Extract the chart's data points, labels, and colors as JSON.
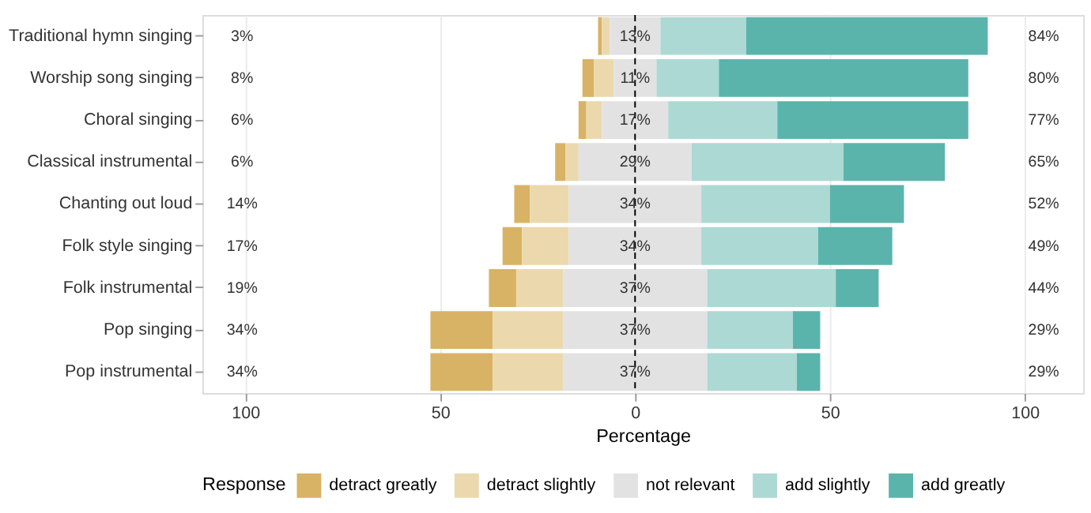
{
  "chart_data": {
    "type": "bar",
    "orientation": "horizontal",
    "xlabel": "Percentage",
    "legend_title": "Response",
    "legend": "bottom",
    "grid": "x",
    "categories": [
      "Traditional hymn singing",
      "Worship song singing",
      "Choral singing",
      "Classical instrumental",
      "Chanting out loud",
      "Folk style singing",
      "Folk instrumental",
      "Pop singing",
      "Pop instrumental"
    ],
    "series": [
      {
        "name": "detract greatly",
        "color": "#d8b365",
        "values": [
          1,
          3,
          2,
          2.6,
          4,
          5,
          7,
          16,
          16
        ],
        "base": [
          -9.5,
          -13.5,
          -14.5,
          -20.5,
          -31,
          -34,
          -37.5,
          -52.5,
          -52.5
        ]
      },
      {
        "name": "detract slightly",
        "color": "#ebd9ad",
        "values": [
          2,
          5,
          4,
          3.4,
          10,
          12,
          12,
          18,
          18
        ],
        "base": [
          -8.5,
          -10.5,
          -12.5,
          -17.9,
          -27,
          -29,
          -30.5,
          -36.5,
          -36.5
        ]
      },
      {
        "name": "not relevant",
        "color": "#e2e2e2",
        "values": [
          13,
          11,
          17,
          29,
          34,
          34,
          37,
          37,
          37
        ],
        "base": [
          -6.5,
          -5.5,
          -8.5,
          -14.5,
          -17,
          -17,
          -18.5,
          -18.5,
          -18.5
        ],
        "value_labels": [
          "13%",
          "11%",
          "17%",
          "29%",
          "34%",
          "34%",
          "37%",
          "37%",
          "37%"
        ]
      },
      {
        "name": "add slightly",
        "color": "#acd9d3",
        "values": [
          22,
          16,
          28,
          39,
          33,
          30,
          33,
          22,
          23
        ],
        "base": [
          6.5,
          5.5,
          8.5,
          14.5,
          17,
          17,
          18.5,
          18.5,
          18.5
        ]
      },
      {
        "name": "add greatly",
        "color": "#5ab4ac",
        "values": [
          62,
          64,
          49,
          26,
          19,
          19,
          11,
          7,
          6
        ],
        "base": [
          28.5,
          21.5,
          36.5,
          53.5,
          50,
          47,
          51.5,
          40.5,
          41.5
        ]
      }
    ],
    "xlim": [
      -111,
      115
    ],
    "xticks": [
      {
        "value": -100,
        "label": "100"
      },
      {
        "value": -50,
        "label": "50"
      },
      0,
      50,
      100
    ],
    "ref_lines": [
      {
        "axis": "x",
        "value": 0,
        "color": "#000000",
        "line_style": "dashed"
      }
    ],
    "annotations": [
      "3%",
      "8%",
      "6%",
      "6%",
      "14%",
      "17%",
      "19%",
      "34%",
      "34%",
      "84%",
      "80%",
      "77%",
      "65%",
      "52%",
      "49%",
      "44%",
      "29%",
      "29%"
    ]
  }
}
